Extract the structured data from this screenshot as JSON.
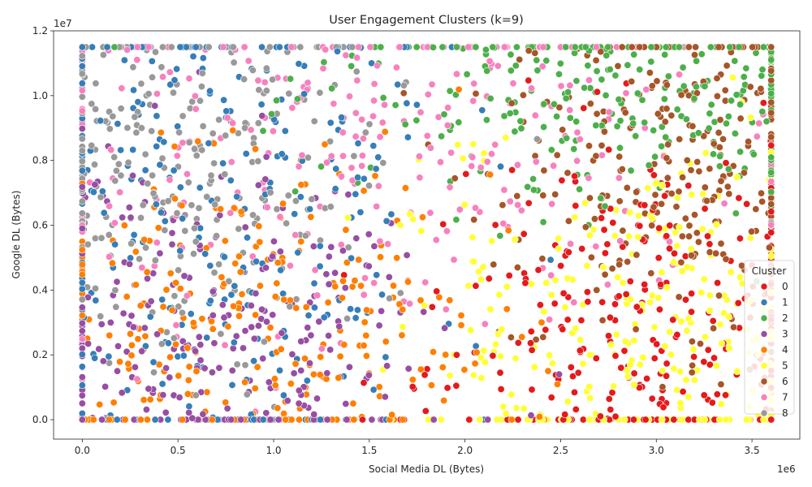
{
  "chart_data": {
    "type": "scatter",
    "title": "User Engagement Clusters (k=9)",
    "xlabel": "Social Media DL (Bytes)",
    "ylabel": "Google DL (Bytes)",
    "x_scale_label": "1e6",
    "y_scale_label": "1e7",
    "xlim": [
      -150000,
      3750000
    ],
    "ylim": [
      -600000,
      12000000
    ],
    "x_ticks": [
      0,
      500000,
      1000000,
      1500000,
      2000000,
      2500000,
      3000000,
      3500000
    ],
    "x_tick_labels": [
      "0.0",
      "0.5",
      "1.0",
      "1.5",
      "2.0",
      "2.5",
      "3.0",
      "3.5"
    ],
    "y_ticks": [
      0,
      2000000,
      4000000,
      6000000,
      8000000,
      10000000,
      12000000
    ],
    "y_tick_labels": [
      "0.0",
      "0.2",
      "0.4",
      "0.6",
      "0.8",
      "1.0",
      "1.2"
    ],
    "grid": false,
    "legend": {
      "title": "Cluster",
      "placement": "right",
      "entries": [
        "0",
        "1",
        "2",
        "3",
        "4",
        "5",
        "6",
        "7",
        "8"
      ]
    },
    "colors": [
      "#e41a1c",
      "#377eb8",
      "#4daf4a",
      "#984ea3",
      "#ff7f00",
      "#ffff33",
      "#a65628",
      "#f781bf",
      "#999999"
    ],
    "data_extent": {
      "x": [
        0,
        3600000
      ],
      "y": [
        0,
        11500000
      ]
    },
    "series": [
      {
        "name": "0",
        "center": [
          3000000,
          2500000
        ],
        "spread": [
          600000,
          3000000
        ]
      },
      {
        "name": "1",
        "center": [
          600000,
          6000000
        ],
        "spread": [
          700000,
          5000000
        ]
      },
      {
        "name": "2",
        "center": [
          2800000,
          10000000
        ],
        "spread": [
          800000,
          2000000
        ]
      },
      {
        "name": "3",
        "center": [
          600000,
          2500000
        ],
        "spread": [
          600000,
          3000000
        ]
      },
      {
        "name": "4",
        "center": [
          900000,
          2500000
        ],
        "spread": [
          700000,
          3000000
        ]
      },
      {
        "name": "5",
        "center": [
          3000000,
          2500000
        ],
        "spread": [
          600000,
          3000000
        ]
      },
      {
        "name": "6",
        "center": [
          3200000,
          8000000
        ],
        "spread": [
          500000,
          3000000
        ]
      },
      {
        "name": "7",
        "center": [
          1500000,
          9000000
        ],
        "spread": [
          1200000,
          3000000
        ]
      },
      {
        "name": "8",
        "center": [
          500000,
          8000000
        ],
        "spread": [
          500000,
          3000000
        ]
      }
    ]
  }
}
